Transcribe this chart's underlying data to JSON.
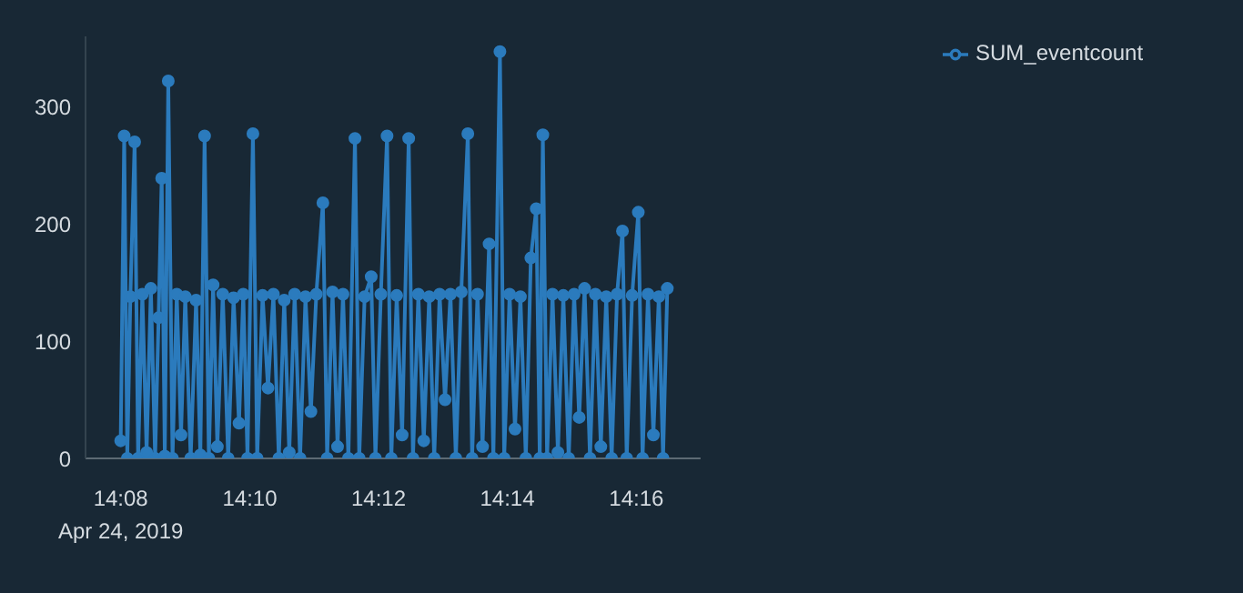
{
  "chart_data": {
    "type": "line",
    "legend": "top right",
    "marker": "circle",
    "grid": false,
    "annotations": [
      "Apr 24, 2019"
    ],
    "xlim": [
      14.1242,
      14.2833
    ],
    "xticks": [
      {
        "value": 14.1333,
        "label": "14:08"
      },
      {
        "value": 14.1667,
        "label": "14:10"
      },
      {
        "value": 14.2,
        "label": "14:12"
      },
      {
        "value": 14.2333,
        "label": "14:14"
      },
      {
        "value": 14.2667,
        "label": "14:16"
      }
    ],
    "ylim": [
      0,
      360
    ],
    "yticks": [
      0,
      100,
      200,
      300
    ],
    "x": [
      14.1333,
      14.1342,
      14.135,
      14.1358,
      14.1369,
      14.1378,
      14.1389,
      14.14,
      14.1411,
      14.1422,
      14.1431,
      14.1439,
      14.1447,
      14.1456,
      14.1467,
      14.1478,
      14.1489,
      14.15,
      14.1514,
      14.1528,
      14.1539,
      14.155,
      14.1561,
      14.1572,
      14.1583,
      14.1597,
      14.1611,
      14.1625,
      14.1639,
      14.165,
      14.1661,
      14.1675,
      14.1686,
      14.17,
      14.1714,
      14.1728,
      14.1742,
      14.1756,
      14.1769,
      14.1783,
      14.1797,
      14.1811,
      14.1825,
      14.1839,
      14.1856,
      14.1867,
      14.1881,
      14.1894,
      14.1908,
      14.1922,
      14.1939,
      14.195,
      14.1964,
      14.1981,
      14.1992,
      14.2006,
      14.2022,
      14.2033,
      14.2047,
      14.2061,
      14.2078,
      14.2089,
      14.2103,
      14.2117,
      14.2131,
      14.2144,
      14.2158,
      14.2172,
      14.2186,
      14.22,
      14.2214,
      14.2231,
      14.2242,
      14.2256,
      14.2269,
      14.2286,
      14.2297,
      14.2314,
      14.2325,
      14.2339,
      14.2353,
      14.2367,
      14.2381,
      14.2394,
      14.2408,
      14.2417,
      14.2425,
      14.2436,
      14.245,
      14.2464,
      14.2478,
      14.2492,
      14.2506,
      14.2519,
      14.2533,
      14.2547,
      14.2561,
      14.2575,
      14.2589,
      14.2603,
      14.2617,
      14.2631,
      14.2642,
      14.2656,
      14.2672,
      14.2683,
      14.2697,
      14.2711,
      14.2725,
      14.2736,
      14.2747
    ],
    "series": [
      {
        "name": "SUM_eventcount",
        "color": "#2b7bbd",
        "values": [
          15,
          275,
          0,
          138,
          270,
          0,
          140,
          5,
          145,
          0,
          120,
          239,
          2,
          322,
          0,
          140,
          20,
          138,
          0,
          135,
          3,
          275,
          0,
          148,
          10,
          140,
          0,
          137,
          30,
          140,
          0,
          277,
          0,
          139,
          60,
          140,
          0,
          135,
          5,
          140,
          0,
          138,
          40,
          140,
          218,
          0,
          142,
          10,
          140,
          0,
          273,
          0,
          138,
          155,
          0,
          140,
          275,
          0,
          139,
          20,
          273,
          0,
          140,
          15,
          138,
          0,
          140,
          50,
          140,
          0,
          142,
          277,
          0,
          140,
          10,
          183,
          0,
          347,
          0,
          140,
          25,
          138,
          0,
          171,
          213,
          0,
          276,
          0,
          140,
          5,
          139,
          0,
          140,
          35,
          145,
          0,
          140,
          10,
          138,
          0,
          140,
          194,
          0,
          139,
          210,
          0,
          140,
          20,
          138,
          0,
          145
        ]
      }
    ]
  }
}
